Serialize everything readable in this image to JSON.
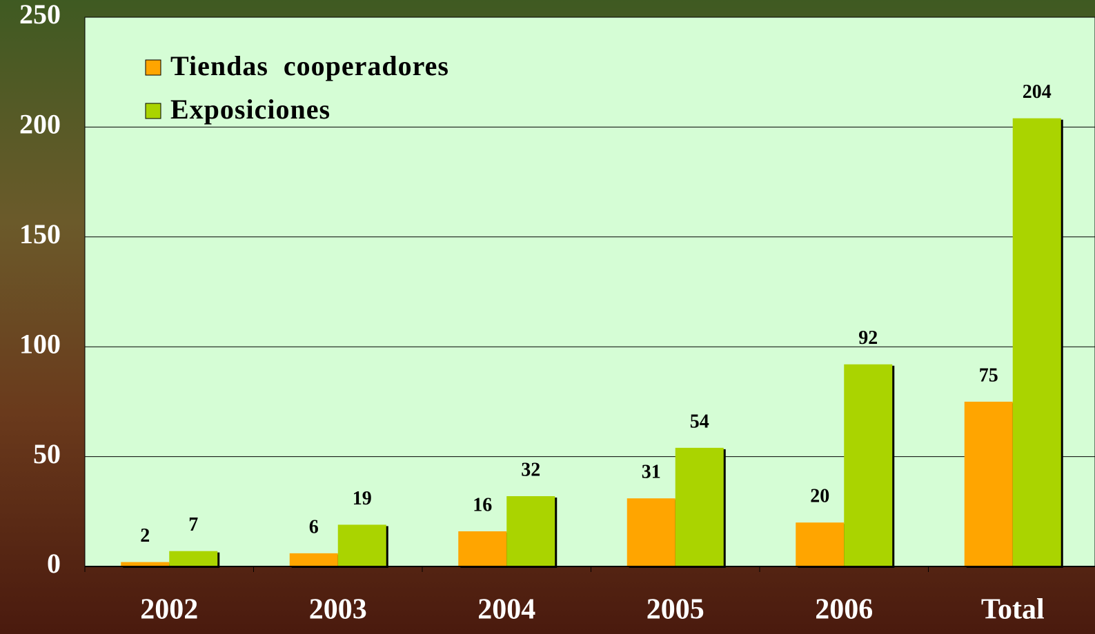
{
  "chart_data": {
    "type": "bar",
    "categories": [
      "2002",
      "2003",
      "2004",
      "2005",
      "2006",
      "Total"
    ],
    "series": [
      {
        "name": "Tiendas  cooperadores",
        "color": "#ffa500",
        "values": [
          2,
          6,
          16,
          31,
          20,
          75
        ]
      },
      {
        "name": "Exposiciones",
        "color": "#aad400",
        "values": [
          7,
          19,
          32,
          54,
          92,
          204
        ]
      }
    ],
    "ylim": [
      0,
      250
    ],
    "yticks": [
      0,
      50,
      100,
      150,
      200,
      250
    ],
    "grid": true,
    "legend": "upper left"
  }
}
